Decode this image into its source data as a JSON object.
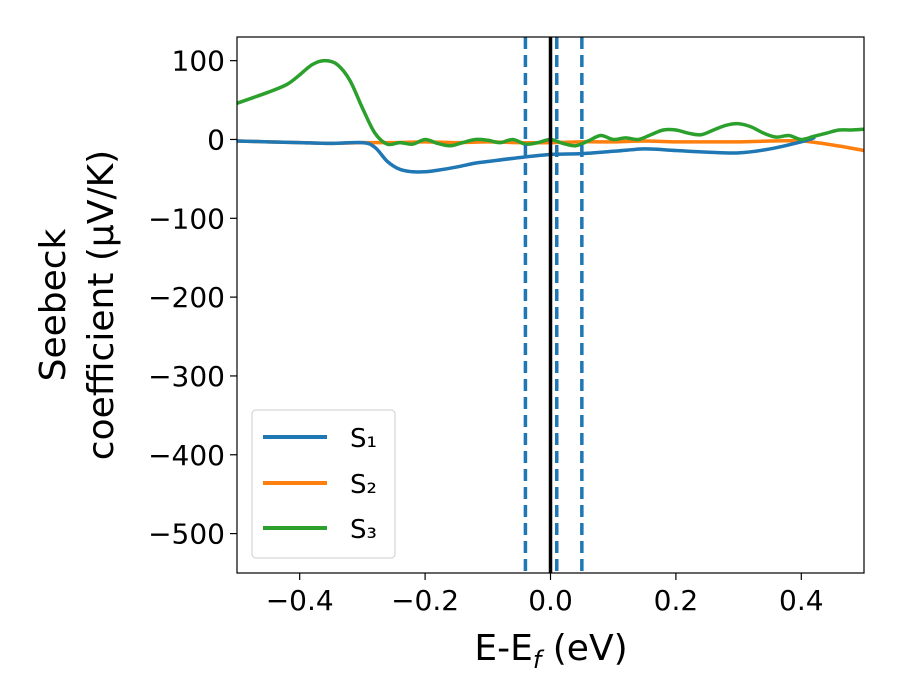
{
  "chart_data": {
    "type": "line",
    "xlabel": {
      "base": "E-E",
      "sub": "f",
      "suffix": " (eV)"
    },
    "ylabel": {
      "line1": "Seebeck",
      "line2": "coefficient  (μV/K)"
    },
    "xlim": [
      -0.5,
      0.5
    ],
    "ylim": [
      -550,
      130
    ],
    "xticks": [
      -0.4,
      -0.2,
      0.0,
      0.2,
      0.4
    ],
    "xtick_labels": [
      "−0.4",
      "−0.2",
      "0.0",
      "0.2",
      "0.4"
    ],
    "yticks": [
      100,
      0,
      -100,
      -200,
      -300,
      -400,
      -500
    ],
    "ytick_labels": [
      "100",
      "0",
      "−100",
      "−200",
      "−300",
      "−400",
      "−500"
    ],
    "grid": false,
    "legend_position": "lower-left",
    "series": [
      {
        "name": "S₁",
        "color": "#1f77b4",
        "x": [
          -0.5,
          -0.45,
          -0.4,
          -0.35,
          -0.3,
          -0.28,
          -0.26,
          -0.24,
          -0.22,
          -0.2,
          -0.18,
          -0.15,
          -0.12,
          -0.1,
          -0.05,
          0.0,
          0.05,
          0.1,
          0.15,
          0.2,
          0.25,
          0.3,
          0.35,
          0.4,
          0.42
        ],
        "y": [
          -2,
          -3,
          -4,
          -5,
          -4,
          -10,
          -28,
          -38,
          -41,
          -41,
          -39,
          -35,
          -30,
          -28,
          -23,
          -19,
          -18,
          -15,
          -12,
          -14,
          -16,
          -17,
          -12,
          -3,
          2
        ]
      },
      {
        "name": "S₂",
        "color": "#ff7f0e",
        "x": [
          -0.5,
          -0.45,
          -0.4,
          -0.35,
          -0.3,
          -0.25,
          -0.2,
          -0.15,
          -0.1,
          -0.05,
          0.0,
          0.05,
          0.1,
          0.15,
          0.2,
          0.25,
          0.3,
          0.35,
          0.4,
          0.45,
          0.5
        ],
        "y": [
          -2,
          -3,
          -4,
          -5,
          -4,
          -4,
          -3,
          -4,
          -3,
          -4,
          -4,
          -3,
          -3,
          -2,
          -3,
          -3,
          -3,
          -2,
          -2,
          -7,
          -14
        ]
      },
      {
        "name": "S₃",
        "color": "#2ca02c",
        "x": [
          -0.5,
          -0.45,
          -0.42,
          -0.4,
          -0.38,
          -0.36,
          -0.34,
          -0.32,
          -0.3,
          -0.28,
          -0.26,
          -0.24,
          -0.22,
          -0.2,
          -0.18,
          -0.16,
          -0.14,
          -0.12,
          -0.1,
          -0.08,
          -0.06,
          -0.04,
          -0.02,
          0.0,
          0.02,
          0.04,
          0.06,
          0.08,
          0.1,
          0.12,
          0.14,
          0.16,
          0.18,
          0.2,
          0.22,
          0.24,
          0.26,
          0.28,
          0.3,
          0.32,
          0.34,
          0.36,
          0.38,
          0.4,
          0.42,
          0.44,
          0.46,
          0.48,
          0.5
        ],
        "y": [
          46,
          60,
          70,
          82,
          95,
          100,
          95,
          75,
          40,
          8,
          -6,
          -4,
          -6,
          0,
          -5,
          -8,
          -4,
          0,
          -1,
          -4,
          0,
          -6,
          -4,
          0,
          -5,
          -8,
          -2,
          5,
          0,
          2,
          0,
          6,
          12,
          12,
          8,
          6,
          12,
          18,
          20,
          16,
          8,
          3,
          5,
          0,
          4,
          8,
          12,
          12,
          13
        ]
      }
    ],
    "vlines": [
      {
        "x": -0.04,
        "style": "dashed",
        "color": "#1f77b4"
      },
      {
        "x": 0.0,
        "style": "solid",
        "color": "#000000"
      },
      {
        "x": 0.01,
        "style": "dashed",
        "color": "#1f77b4"
      },
      {
        "x": 0.05,
        "style": "dashed",
        "color": "#1f77b4"
      }
    ]
  }
}
